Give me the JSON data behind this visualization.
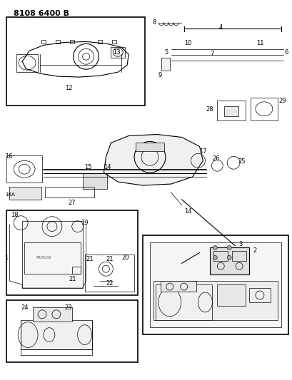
{
  "title_code": "8108 6400 B",
  "background_color": "#ffffff",
  "line_color": "#000000",
  "fig_width": 4.1,
  "fig_height": 5.33,
  "dpi": 100,
  "font_size_title": 8,
  "font_size_labels": 6,
  "font_size_small": 5
}
